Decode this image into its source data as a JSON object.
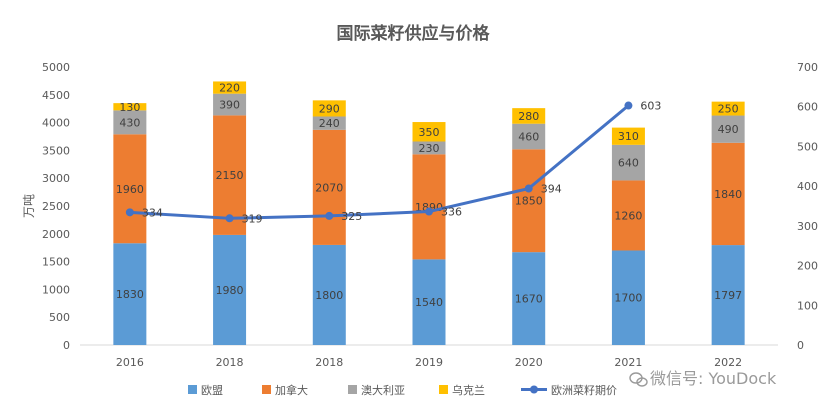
{
  "chart_data": {
    "type": "bar",
    "title": "国际菜籽供应与价格",
    "categories": [
      "2016",
      "2018",
      "2018",
      "2019",
      "2020",
      "2021",
      "2022"
    ],
    "ylabel": "万吨",
    "ylim": [
      0,
      5000
    ],
    "y2lim": [
      0,
      700
    ],
    "yticks": [
      "0",
      "500",
      "1000",
      "1500",
      "2000",
      "2500",
      "3000",
      "3500",
      "4000",
      "4500",
      "5000"
    ],
    "y2ticks": [
      "0",
      "100",
      "200",
      "300",
      "400",
      "500",
      "600",
      "700"
    ],
    "stacked": true,
    "series": [
      {
        "name": "欧盟",
        "type": "bar",
        "color": "#5B9BD5",
        "values": [
          1830,
          1980,
          1800,
          1540,
          1670,
          1700,
          1797
        ]
      },
      {
        "name": "加拿大",
        "type": "bar",
        "color": "#ED7D31",
        "values": [
          1960,
          2150,
          2070,
          1890,
          1850,
          1260,
          1840
        ]
      },
      {
        "name": "澳大利亚",
        "type": "bar",
        "color": "#A5A5A5",
        "values": [
          430,
          390,
          240,
          230,
          460,
          640,
          490
        ]
      },
      {
        "name": "乌克兰",
        "type": "bar",
        "color": "#FFC000",
        "values": [
          130,
          220,
          290,
          350,
          280,
          310,
          250
        ]
      },
      {
        "name": "欧洲菜籽期价",
        "type": "line",
        "axis": "right",
        "color": "#4472C4",
        "values": [
          334,
          319,
          325,
          336,
          394,
          603,
          null
        ]
      }
    ],
    "line_labels": [
      "334",
      "319",
      "325",
      "336",
      "394",
      "603",
      ""
    ],
    "grid": false,
    "legend_position": "bottom"
  },
  "watermark": "微信号: YouDock"
}
